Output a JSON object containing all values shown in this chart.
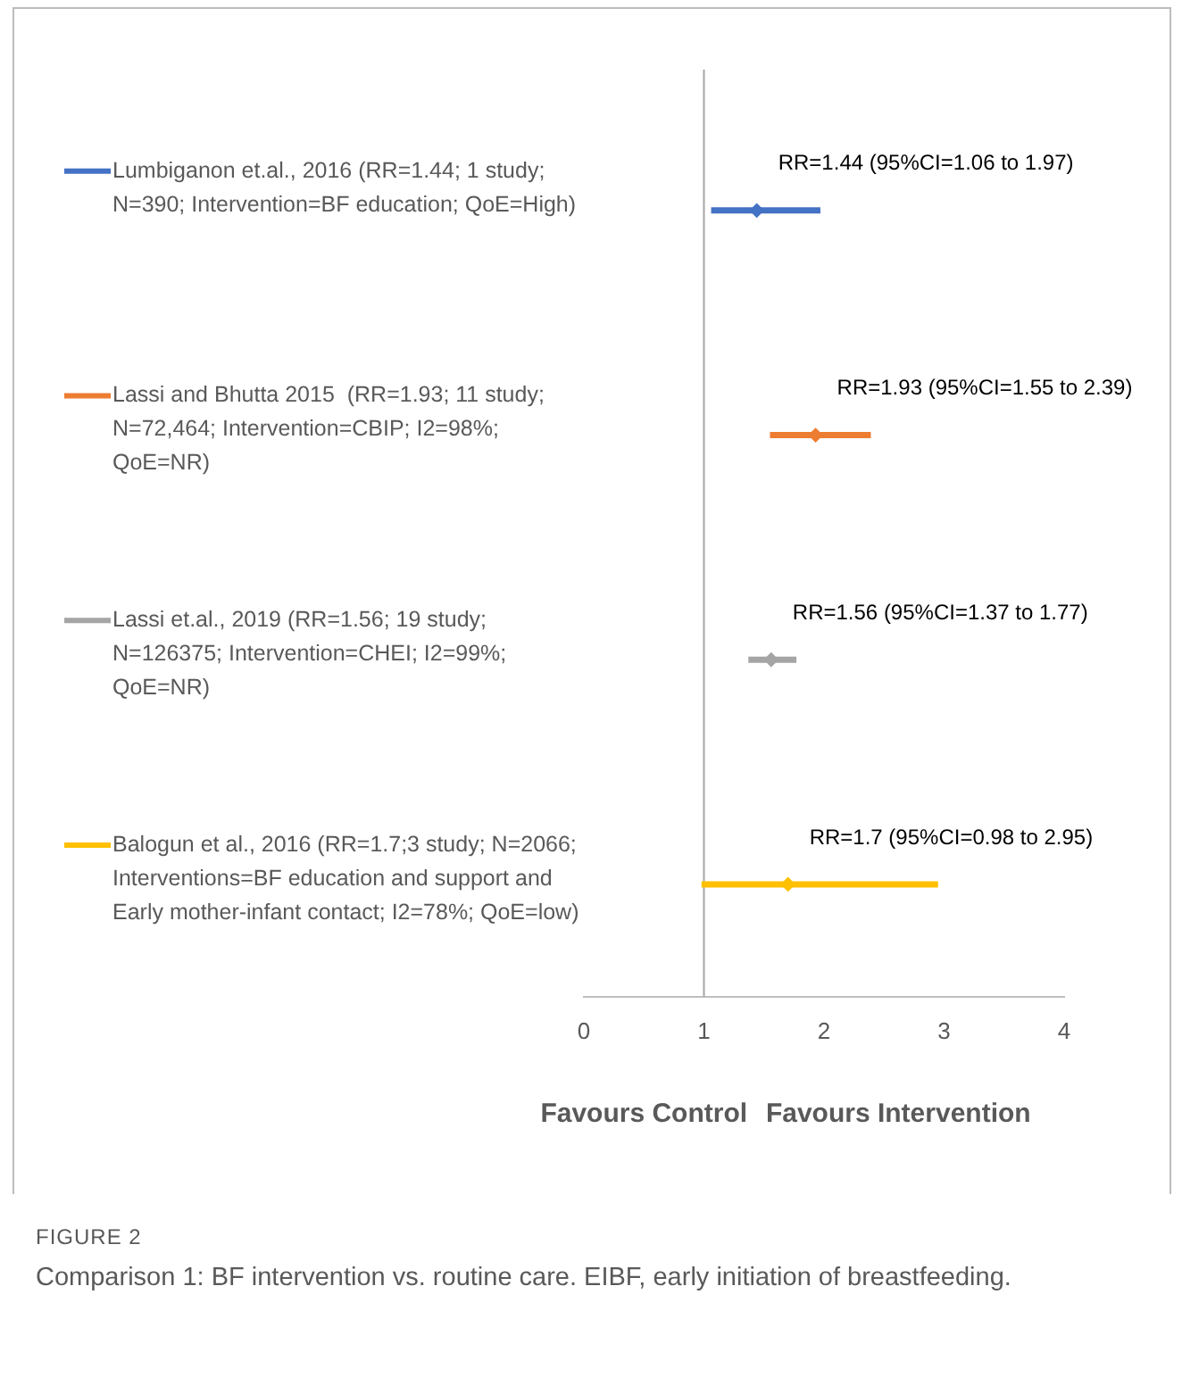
{
  "chart_data": {
    "type": "scatter",
    "orientation": "horizontal",
    "categories": [
      null,
      null,
      null,
      null
    ],
    "series": [
      {
        "name": "Lumbiganon et.al., 2016 (RR=1.44; 1 study; N=390; Intervention=BF education; QoE=High)",
        "color": "#4472c4",
        "values": [
          1.44,
          null,
          null,
          null
        ],
        "errors": [
          [
            1.06,
            1.97
          ],
          null,
          null,
          null
        ],
        "value_labels": [
          "RR=1.44 (95%CI=1.06 to 1.97)",
          null,
          null,
          null
        ]
      },
      {
        "name": "Lassi and Bhutta 2015  (RR=1.93; 11 study; N=72,464; Intervention=CBIP; I2=98%; QoE=NR)",
        "color": "#ed7d31",
        "values": [
          null,
          1.93,
          null,
          null
        ],
        "errors": [
          null,
          [
            1.55,
            2.39
          ],
          null,
          null
        ],
        "value_labels": [
          null,
          "RR=1.93 (95%CI=1.55 to 2.39)",
          null,
          null
        ]
      },
      {
        "name": "Lassi et.al., 2019 (RR=1.56; 19 study; N=126375; Intervention=CHEI; I2=99%; QoE=NR)",
        "color": "#a5a5a5",
        "values": [
          null,
          null,
          1.56,
          null
        ],
        "errors": [
          null,
          null,
          [
            1.37,
            1.77
          ],
          null
        ],
        "value_labels": [
          null,
          null,
          "RR=1.56 (95%CI=1.37 to 1.77)",
          null
        ]
      },
      {
        "name": "Balogun et al., 2016 (RR=1.7;3 study; N=2066; Interventions=BF education and support and Early mother-infant contact; I2=78%; QoE=low)",
        "color": "#ffc000",
        "values": [
          null,
          null,
          null,
          1.7
        ],
        "errors": [
          null,
          null,
          null,
          [
            0.98,
            2.95
          ]
        ],
        "value_labels": [
          null,
          null,
          null,
          "RR=1.7 (95%CI=0.98 to 2.95)"
        ]
      }
    ],
    "xlim": [
      0,
      4
    ],
    "xticks": [
      0,
      1,
      2,
      3,
      4
    ],
    "tick_labels": "x",
    "grid": false,
    "legend": "left",
    "marker": "diamond",
    "ref_lines": [
      {
        "axis": "x",
        "value": 1,
        "color": "#a6a6a6"
      }
    ],
    "annotations": [
      "Favours Control",
      "Favours Intervention",
      "FIGURE 2",
      "Comparison 1: BF intervention vs. routine care. EIBF, early initiation of breastfeeding."
    ]
  }
}
